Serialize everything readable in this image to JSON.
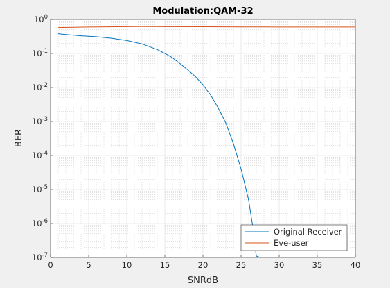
{
  "chart_data": {
    "type": "line",
    "title": "Modulation:QAM-32",
    "xlabel": "SNRdB",
    "ylabel": "BER",
    "xlim": [
      0,
      40
    ],
    "ylim": [
      1e-07,
      1
    ],
    "yscale": "log",
    "grid": "on (major and minor)",
    "legend_location": "bottom-right",
    "x_ticks": [
      0,
      5,
      10,
      15,
      20,
      25,
      30,
      35,
      40
    ],
    "y_tick_exponents": [
      -7,
      -6,
      -5,
      -4,
      -3,
      -2,
      -1,
      0
    ],
    "y_tick_base": "10",
    "series": [
      {
        "name": "Original Receiver",
        "color": "#0072bd",
        "x": [
          1,
          2,
          4,
          6,
          8,
          10,
          12,
          14,
          15,
          16,
          17,
          18,
          19,
          20,
          21,
          22,
          23,
          24,
          25,
          25.5,
          26,
          26.5,
          27,
          27.5,
          28
        ],
        "y": [
          0.38,
          0.36,
          0.33,
          0.31,
          0.28,
          0.24,
          0.19,
          0.13,
          0.1,
          0.075,
          0.05,
          0.033,
          0.021,
          0.012,
          0.006,
          0.0025,
          0.0009,
          0.00022,
          4e-05,
          1.4e-05,
          4.8e-06,
          9e-07,
          1.1e-07,
          1e-07,
          1e-07
        ]
      },
      {
        "name": "Eve-user",
        "color": "#d95319",
        "x": [
          1,
          5,
          10,
          12,
          15,
          20,
          25,
          30,
          35,
          40
        ],
        "y": [
          0.58,
          0.6,
          0.615,
          0.62,
          0.615,
          0.61,
          0.605,
          0.6,
          0.6,
          0.6
        ]
      }
    ]
  }
}
